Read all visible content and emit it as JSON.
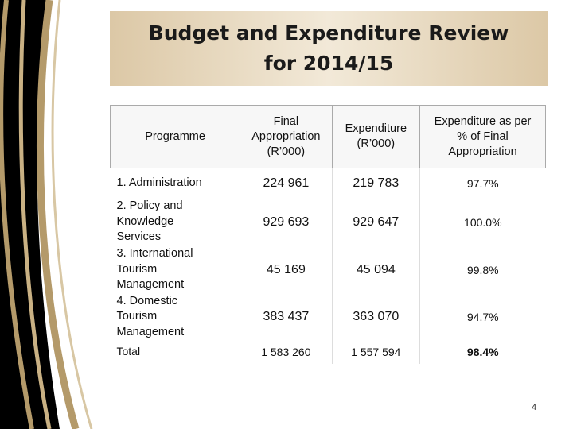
{
  "title": "Budget and Expenditure Review for 2014/15",
  "table": {
    "header": [
      [
        "Programme"
      ],
      [
        "Final",
        "Appropriation",
        "(R’000)"
      ],
      [
        "Expenditure",
        "(R’000)"
      ],
      [
        "Expenditure as per",
        "% of Final",
        "Appropriation"
      ]
    ],
    "rows": [
      [
        "1.  Administration",
        "224 961",
        "219 783",
        "97.7%"
      ],
      [
        "2. Policy and Knowledge Services",
        "929 693",
        "929 647",
        "100.0%"
      ],
      [
        "3. International Tourism Management",
        "45 169",
        "45 094",
        "99.8%"
      ],
      [
        "4. Domestic Tourism Management",
        "383 437",
        "363 070",
        "94.7%"
      ],
      [
        "Total",
        "1 583 260",
        "1 557 594",
        "98.4%"
      ]
    ]
  },
  "page_number": "4"
}
